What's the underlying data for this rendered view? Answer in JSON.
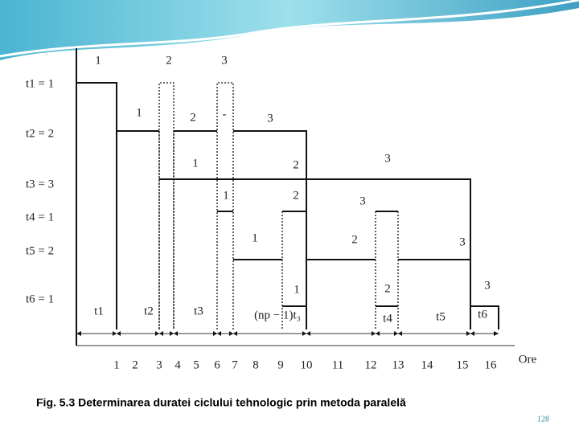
{
  "slide": {
    "figure": {
      "row_labels": [
        "t1 = 1",
        "t2 = 2",
        "t3 = 3",
        "t4 = 1",
        "t5 = 2",
        "t6 = 1"
      ],
      "step_labels": [
        [
          "1",
          "2",
          "3"
        ],
        [
          "1",
          "2",
          "-",
          "3"
        ],
        [
          "1",
          "2",
          "3"
        ],
        [
          "1",
          "2",
          "3"
        ],
        [
          "1",
          "2",
          "3"
        ],
        [
          "1",
          "2",
          "3"
        ]
      ],
      "segment_labels": [
        "t1",
        "t2",
        "t3",
        "(np − 1)t₃",
        "t4",
        "t5",
        "t6"
      ],
      "axis_ticks": [
        "1",
        "2",
        "3",
        "4",
        "5",
        "6",
        "7",
        "8",
        "9",
        "10",
        "11",
        "12",
        "13",
        "14",
        "15",
        "16"
      ],
      "axis_label": "Ore"
    },
    "caption": "Fig. 5.3 Determinarea duratei ciclului tehnologic prin metoda paralelă",
    "page_number": "128"
  }
}
